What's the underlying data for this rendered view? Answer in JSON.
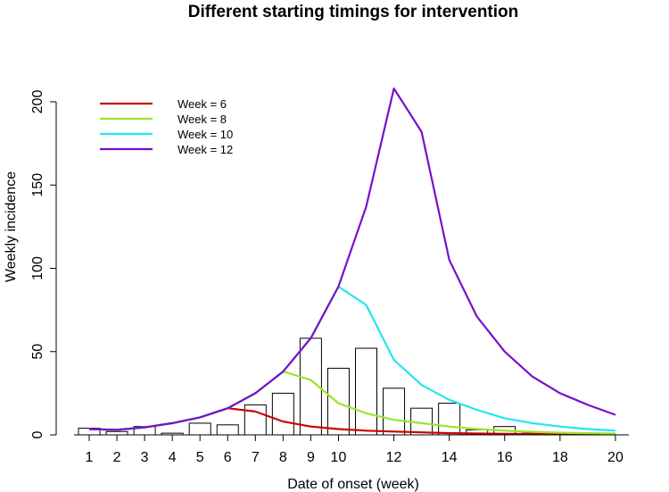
{
  "chart_data": {
    "type": "bar+line",
    "title": "Different starting timings for intervention",
    "xlabel": "Date of onset (week)",
    "ylabel": "Weekly incidence",
    "xlim": [
      0.5,
      20.5
    ],
    "ylim": [
      0,
      200
    ],
    "x_ticks": [
      1,
      2,
      3,
      4,
      5,
      6,
      7,
      8,
      9,
      10,
      12,
      14,
      16,
      18,
      20
    ],
    "y_ticks": [
      0,
      50,
      100,
      150,
      200
    ],
    "bars": {
      "x": [
        1,
        2,
        3,
        4,
        5,
        6,
        7,
        8,
        9,
        10,
        11,
        12,
        13,
        14,
        15,
        16,
        17,
        18,
        19,
        20
      ],
      "values": [
        4,
        2,
        5,
        1,
        7,
        6,
        18,
        25,
        58,
        40,
        52,
        28,
        16,
        19,
        3,
        5,
        1,
        0,
        0,
        0
      ],
      "fill": "#ffffff",
      "stroke": "#000000"
    },
    "legend_position": "top-left",
    "series": [
      {
        "name": "Week = 6",
        "color": "#cc0000",
        "x": [
          1,
          2,
          3,
          4,
          5,
          6,
          7,
          8,
          9,
          10,
          11,
          12,
          13,
          14,
          15,
          16,
          17,
          18,
          19,
          20
        ],
        "values": [
          3.5,
          3,
          4.5,
          7,
          10.5,
          16,
          14,
          8,
          5,
          3.5,
          2.5,
          2,
          1.5,
          1,
          0.8,
          0.6,
          0.5,
          0.4,
          0.3,
          0.3
        ]
      },
      {
        "name": "Week = 8",
        "color": "#99e62e",
        "x": [
          1,
          2,
          3,
          4,
          5,
          6,
          7,
          8,
          9,
          10,
          11,
          12,
          13,
          14,
          15,
          16,
          17,
          18,
          19,
          20
        ],
        "values": [
          3.5,
          3,
          4.5,
          7,
          10.5,
          16,
          25,
          38,
          33,
          19,
          13,
          9,
          7,
          5,
          3.5,
          2.5,
          1.8,
          1.3,
          1,
          0.8
        ]
      },
      {
        "name": "Week = 10",
        "color": "#22e6ee",
        "x": [
          1,
          2,
          3,
          4,
          5,
          6,
          7,
          8,
          9,
          10,
          11,
          12,
          13,
          14,
          15,
          16,
          17,
          18,
          19,
          20
        ],
        "values": [
          3.5,
          3,
          4.5,
          7,
          10.5,
          16,
          25,
          38,
          58,
          89,
          78,
          45,
          30,
          21,
          15,
          10,
          7,
          5,
          3.5,
          2.5
        ]
      },
      {
        "name": "Week = 12",
        "color": "#7711c8",
        "x": [
          1,
          2,
          3,
          4,
          5,
          6,
          7,
          8,
          9,
          10,
          11,
          12,
          13,
          14,
          15,
          16,
          17,
          18,
          19,
          20
        ],
        "values": [
          3.5,
          3,
          4.5,
          7,
          10.5,
          16,
          25,
          38,
          58,
          89,
          137,
          208,
          182,
          105,
          71,
          50,
          35,
          25,
          18,
          12
        ]
      }
    ]
  }
}
